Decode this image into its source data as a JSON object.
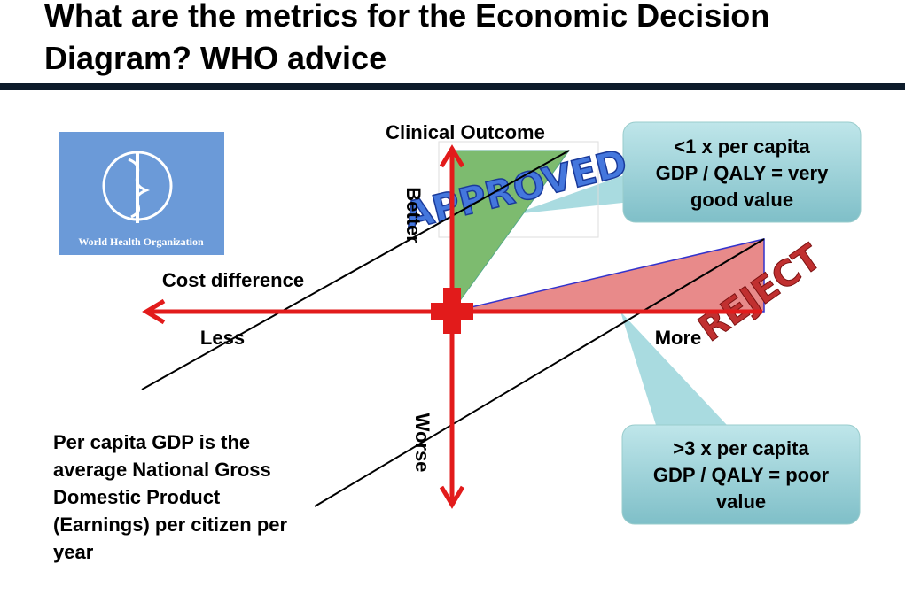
{
  "header": {
    "title_lines": [
      "What are the metrics for the Economic Decision",
      "Diagram? WHO advice"
    ]
  },
  "logo": {
    "label": "World Health Organization"
  },
  "axes": {
    "vertical_title": "Clinical Outcome",
    "up": "Better",
    "down": "Worse",
    "horizontal_title": "Cost difference",
    "left": "Less",
    "right": "More"
  },
  "stamps": {
    "approved": "APPROVED",
    "reject": "REJECT"
  },
  "callouts": [
    {
      "lines": [
        "<1 x per capita",
        "GDP / QALY = very",
        "good value"
      ]
    },
    {
      "lines": [
        ">3 x per capita",
        "GDP / QALY = poor",
        "value"
      ]
    }
  ],
  "note": {
    "lines": [
      "Per capita GDP is the",
      "average National Gross",
      "Domestic Product",
      "(Earnings) per citizen per",
      "year"
    ]
  }
}
